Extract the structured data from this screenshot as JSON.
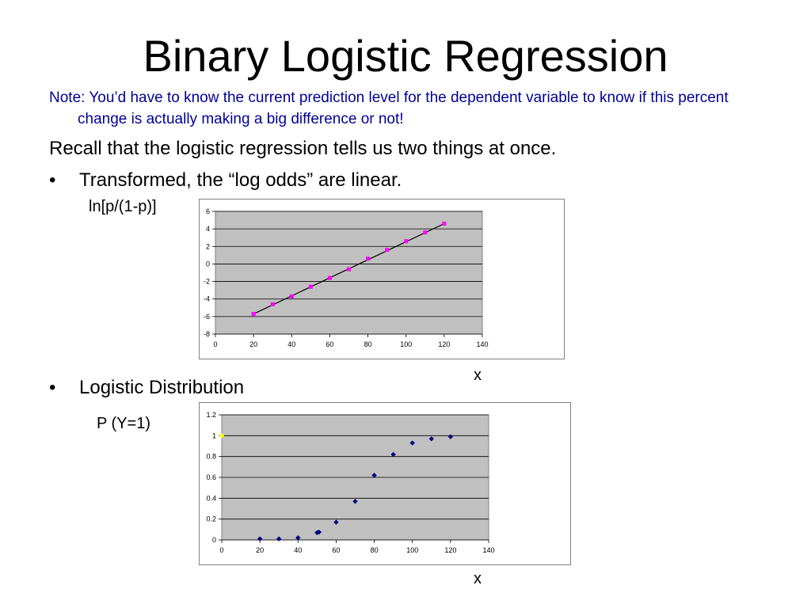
{
  "slide": {
    "title": "Binary Logistic Regression",
    "note": "Note:  You’d have to know the current prediction level for the dependent variable to know if this percent change is actually making a big difference or not!",
    "recall": "Recall that the logistic regression tells us two things at once.",
    "bullet_char": "•",
    "bullet1": "Transformed, the “log odds” are linear.",
    "bullet2": "Logistic Distribution",
    "chart1_ylabel": "ln[p/(1-p)]",
    "chart1_xlabel": "x",
    "chart2_ylabel": "P (Y=1)",
    "chart2_xlabel": "x"
  },
  "colors": {
    "note": "#000099",
    "plot_bg": "#c0c0c0",
    "frame": "#808080",
    "pink_marker": "#ff00ff",
    "blue_marker": "#000080",
    "yellow_marker": "#ffff00",
    "fit_line": "#000000"
  },
  "chart_data": [
    {
      "type": "scatter",
      "xlim": [
        0,
        140
      ],
      "ylim": [
        -8,
        6
      ],
      "x_ticks": [
        "0",
        "20",
        "40",
        "60",
        "80",
        "100",
        "120",
        "140"
      ],
      "y_ticks": [
        "-8",
        "-6",
        "-4",
        "-2",
        "0",
        "2",
        "4",
        "6"
      ],
      "grid": true,
      "legend": "none",
      "series": [
        {
          "marker": "square",
          "color": "#ff00ff",
          "x": [
            20,
            30,
            40,
            50,
            60,
            70,
            80,
            90,
            100,
            110,
            120
          ],
          "y": [
            -5.7,
            -4.6,
            -3.7,
            -2.6,
            -1.6,
            -0.6,
            0.6,
            1.6,
            2.6,
            3.6,
            4.6
          ]
        }
      ],
      "trendline": {
        "x": [
          20,
          120
        ],
        "y": [
          -5.7,
          4.6
        ],
        "color": "#000000"
      }
    },
    {
      "type": "scatter",
      "xlim": [
        0,
        140
      ],
      "ylim": [
        0,
        1.2
      ],
      "x_ticks": [
        "0",
        "20",
        "40",
        "60",
        "80",
        "100",
        "120",
        "140"
      ],
      "y_ticks": [
        "0",
        "0.2",
        "0.4",
        "0.6",
        "0.8",
        "1",
        "1.2"
      ],
      "grid": true,
      "legend": "none",
      "series": [
        {
          "marker": "diamond",
          "color": "#000080",
          "x": [
            20,
            30,
            40,
            50,
            51,
            60,
            70,
            80,
            90,
            100,
            110,
            120
          ],
          "y": [
            0.01,
            0.01,
            0.02,
            0.07,
            0.075,
            0.17,
            0.37,
            0.62,
            0.82,
            0.93,
            0.97,
            0.99
          ]
        },
        {
          "marker": "diamond",
          "color": "#ffff00",
          "x": [
            0
          ],
          "y": [
            1.0
          ]
        }
      ]
    }
  ]
}
